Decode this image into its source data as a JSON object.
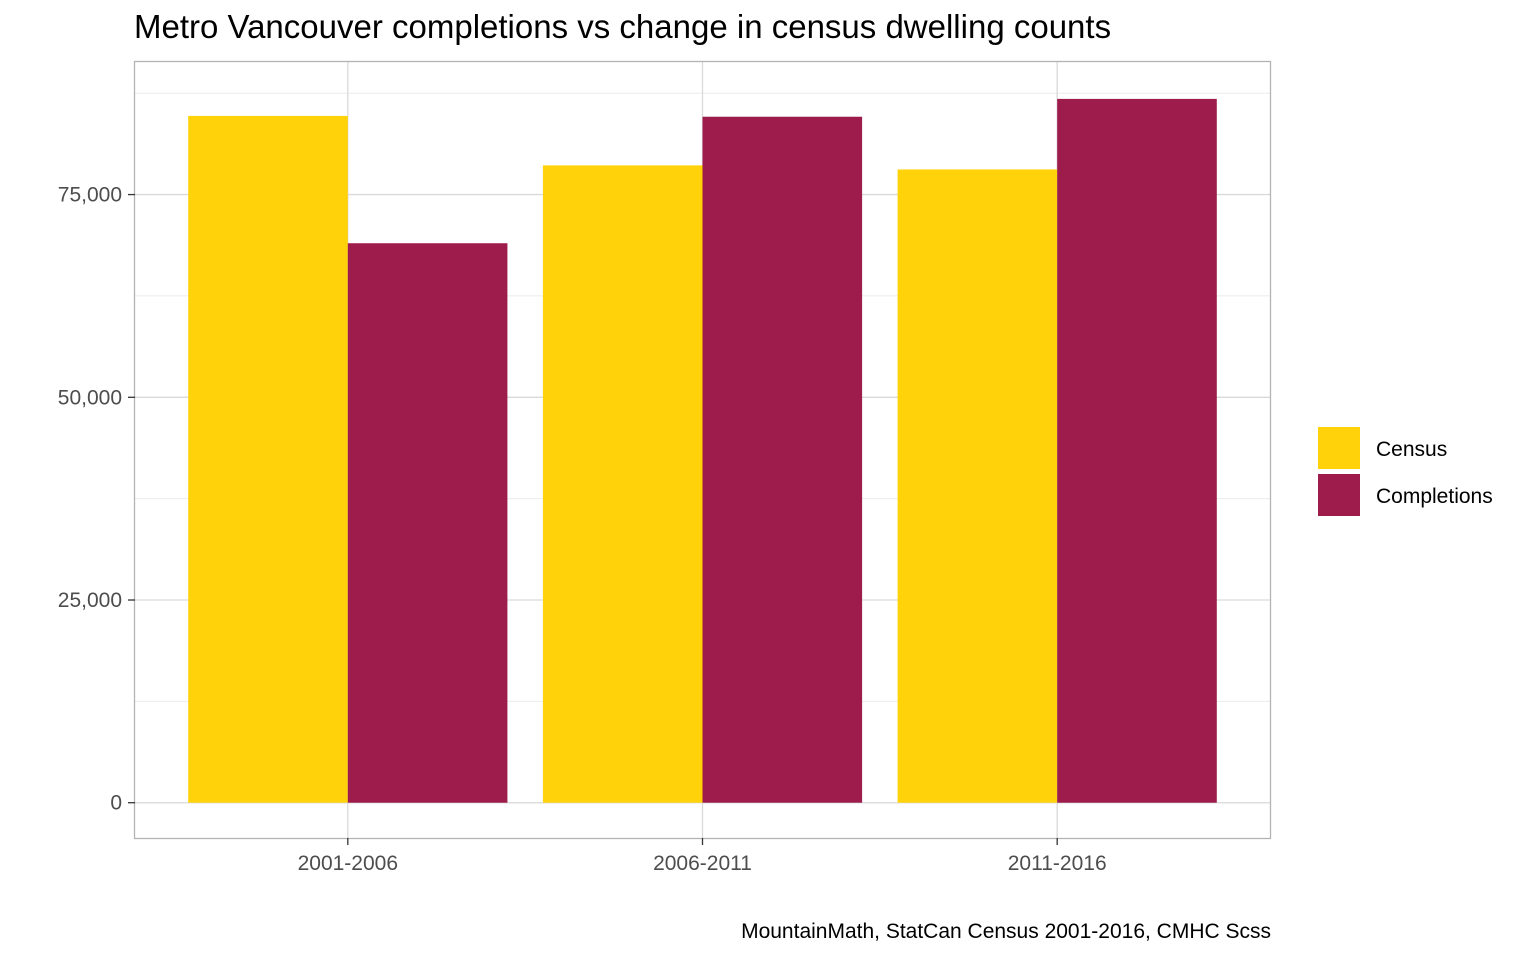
{
  "chart_data": {
    "type": "bar",
    "title": "Metro Vancouver completions vs change in census dwelling counts",
    "xlabel": "",
    "ylabel": "",
    "categories": [
      "2001-2006",
      "2006-2011",
      "2011-2016"
    ],
    "series": [
      {
        "name": "Census",
        "color": "#FFD20A",
        "values": [
          84700,
          78600,
          78100
        ]
      },
      {
        "name": "Completions",
        "color": "#9E1C4C",
        "values": [
          69000,
          84600,
          86800
        ]
      }
    ],
    "ylim": [
      -4350,
      91350
    ],
    "yticks": [
      0,
      25000,
      50000,
      75000
    ],
    "ytick_labels": [
      "0",
      "25,000",
      "50,000",
      "75,000"
    ],
    "grid": true,
    "legend_position": "right",
    "caption": "MountainMath, StatCan Census 2001-2016, CMHC Scss"
  }
}
